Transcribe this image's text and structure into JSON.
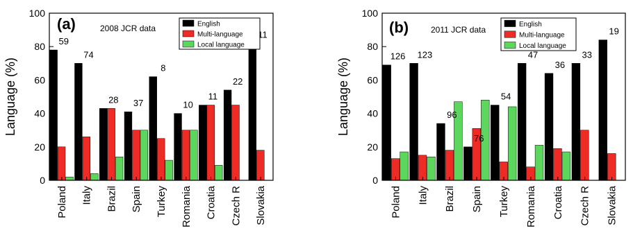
{
  "chart_data": [
    {
      "type": "bar",
      "panel_label": "(a)",
      "subtitle": "2008 JCR data",
      "ylabel": "Language (%)",
      "ylim": [
        0,
        100
      ],
      "yticks": [
        0,
        20,
        40,
        60,
        80,
        100
      ],
      "categories": [
        "Poland",
        "Italy",
        "Brazil",
        "Spain",
        "Turkey",
        "Romania",
        "Croatia",
        "Czech R",
        "Slovakia"
      ],
      "annotations": [
        "59",
        "74",
        "28",
        "37",
        "8",
        "10",
        "11",
        "22",
        "11"
      ],
      "legend_position": "top-right",
      "series": [
        {
          "name": "English",
          "color": "#000000",
          "values": [
            78,
            70,
            43,
            41,
            62,
            40,
            45,
            54,
            82
          ]
        },
        {
          "name": "Multi-language",
          "color": "#ee2b24",
          "values": [
            20,
            26,
            43,
            30,
            25,
            30,
            45,
            45,
            18
          ]
        },
        {
          "name": "Local language",
          "color": "#5cd65c",
          "values": [
            2,
            4,
            14,
            30,
            12,
            30,
            9,
            0,
            0
          ]
        }
      ]
    },
    {
      "type": "bar",
      "panel_label": "(b)",
      "subtitle": "2011 JCR data",
      "ylabel": "Language (%)",
      "ylim": [
        0,
        100
      ],
      "yticks": [
        0,
        20,
        40,
        60,
        80,
        100
      ],
      "categories": [
        "Poland",
        "Italy",
        "Brazil",
        "Spain",
        "Turkey",
        "Romania",
        "Croatia",
        "Czech R",
        "Slovakia"
      ],
      "annotations": [
        "126",
        "123",
        "96",
        "76",
        "54",
        "47",
        "36",
        "33",
        "19"
      ],
      "legend_position": "top-right",
      "series": [
        {
          "name": "English",
          "color": "#000000",
          "values": [
            69,
            70,
            34,
            20,
            45,
            70,
            64,
            70,
            84
          ]
        },
        {
          "name": "Multi-language",
          "color": "#ee2b24",
          "values": [
            13,
            15,
            18,
            31,
            11,
            8,
            19,
            30,
            16
          ]
        },
        {
          "name": "Local language",
          "color": "#5cd65c",
          "values": [
            17,
            14,
            47,
            48,
            44,
            21,
            17,
            0,
            0
          ]
        }
      ]
    }
  ]
}
